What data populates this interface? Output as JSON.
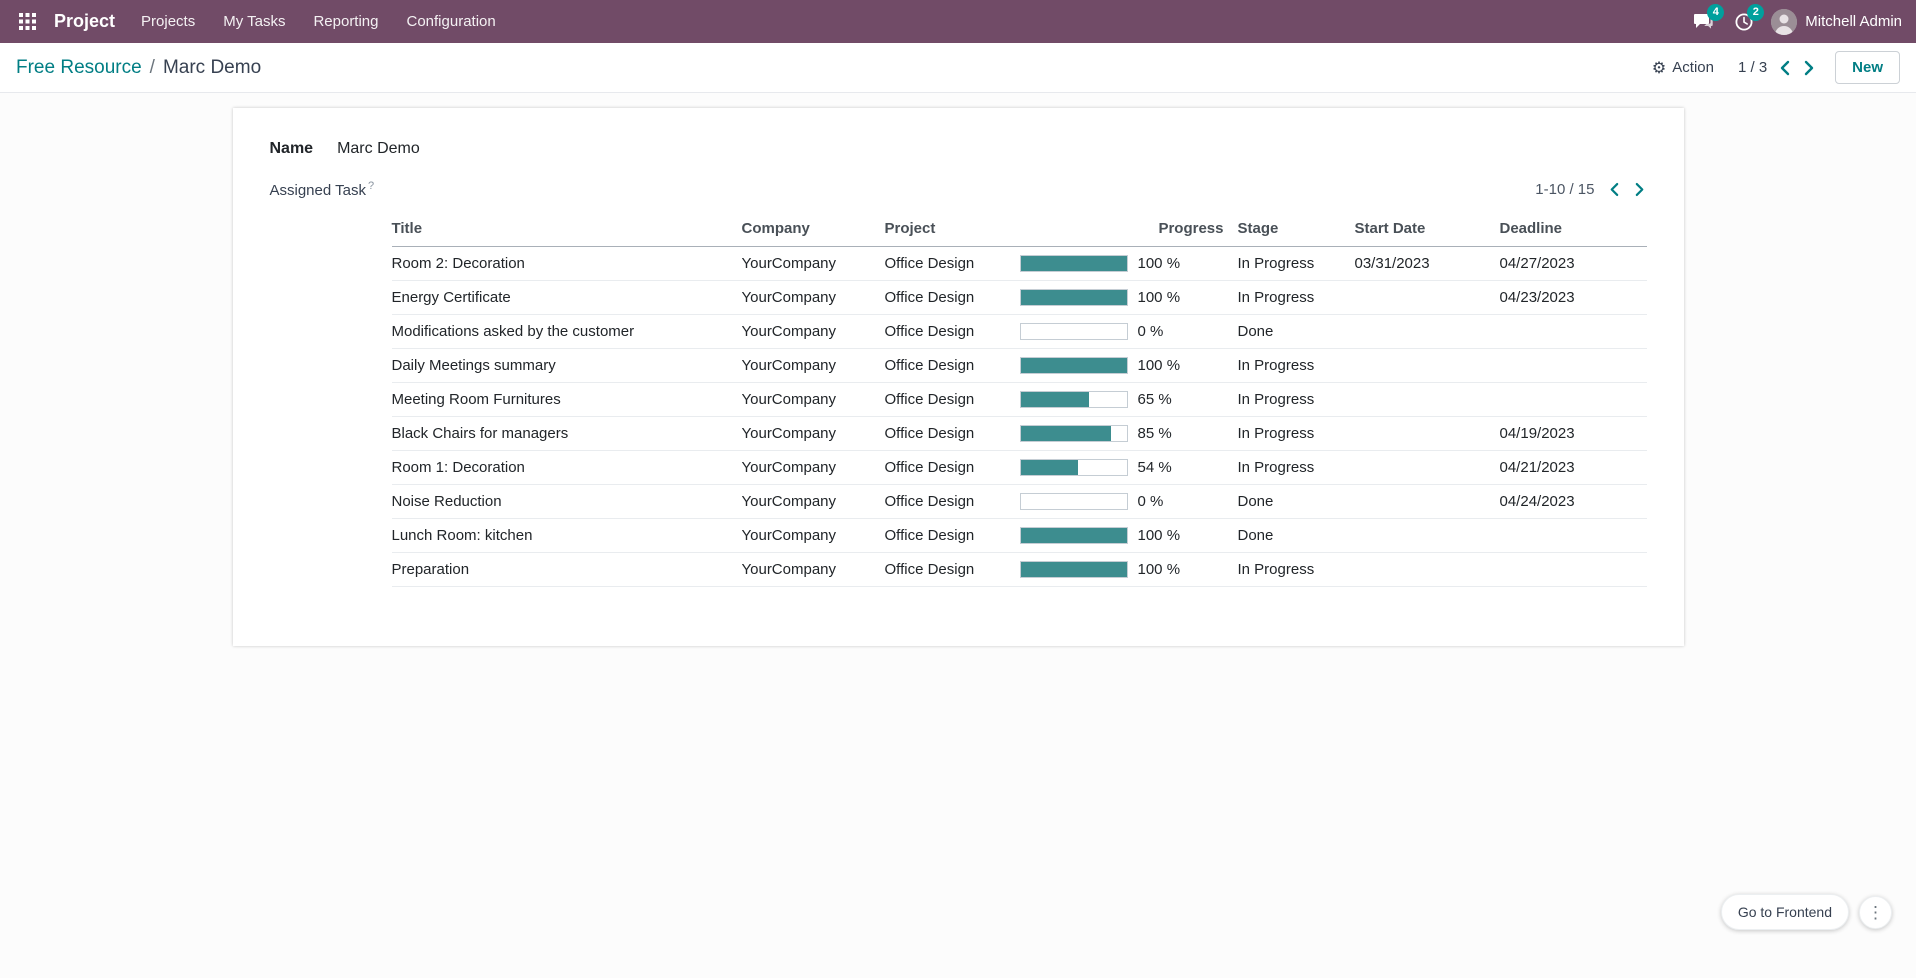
{
  "colors": {
    "navbar_bg": "#714B67",
    "accent_teal": "#017e84",
    "badge_bg": "#00a09d",
    "progress_fill": "#3d8d8f"
  },
  "icons": {
    "gear": "⚙",
    "more_vertical": "⋮"
  },
  "navbar": {
    "app_name": "Project",
    "menu_items": [
      "Projects",
      "My Tasks",
      "Reporting",
      "Configuration"
    ],
    "messages_badge": "4",
    "activities_badge": "2",
    "user_name": "Mitchell Admin"
  },
  "control_panel": {
    "breadcrumb": {
      "parent": "Free Resource",
      "separator": "/",
      "current": "Marc Demo"
    },
    "action_label": "Action",
    "pager_value": "1 / 3",
    "new_button_label": "New"
  },
  "form": {
    "name_label": "Name",
    "name_value": "Marc Demo",
    "tasks_label": "Assigned Task",
    "tasks_help_marker": "?",
    "list_pager": "1-10 / 15",
    "table": {
      "columns": [
        "Title",
        "Company",
        "Project",
        "Progress",
        "Stage",
        "Start Date",
        "Deadline"
      ],
      "rows": [
        {
          "title": "Room 2: Decoration",
          "company": "YourCompany",
          "project": "Office Design",
          "progress": 100,
          "progress_label": "100 %",
          "stage": "In Progress",
          "start_date": "03/31/2023",
          "deadline": "04/27/2023"
        },
        {
          "title": "Energy Certificate",
          "company": "YourCompany",
          "project": "Office Design",
          "progress": 100,
          "progress_label": "100 %",
          "stage": "In Progress",
          "start_date": "",
          "deadline": "04/23/2023"
        },
        {
          "title": "Modifications asked by the customer",
          "company": "YourCompany",
          "project": "Office Design",
          "progress": 0,
          "progress_label": "0 %",
          "stage": "Done",
          "start_date": "",
          "deadline": ""
        },
        {
          "title": "Daily Meetings summary",
          "company": "YourCompany",
          "project": "Office Design",
          "progress": 100,
          "progress_label": "100 %",
          "stage": "In Progress",
          "start_date": "",
          "deadline": ""
        },
        {
          "title": "Meeting Room Furnitures",
          "company": "YourCompany",
          "project": "Office Design",
          "progress": 65,
          "progress_label": "65 %",
          "stage": "In Progress",
          "start_date": "",
          "deadline": ""
        },
        {
          "title": "Black Chairs for managers",
          "company": "YourCompany",
          "project": "Office Design",
          "progress": 85,
          "progress_label": "85 %",
          "stage": "In Progress",
          "start_date": "",
          "deadline": "04/19/2023"
        },
        {
          "title": "Room 1: Decoration",
          "company": "YourCompany",
          "project": "Office Design",
          "progress": 54,
          "progress_label": "54 %",
          "stage": "In Progress",
          "start_date": "",
          "deadline": "04/21/2023"
        },
        {
          "title": "Noise Reduction",
          "company": "YourCompany",
          "project": "Office Design",
          "progress": 0,
          "progress_label": "0 %",
          "stage": "Done",
          "start_date": "",
          "deadline": "04/24/2023"
        },
        {
          "title": "Lunch Room: kitchen",
          "company": "YourCompany",
          "project": "Office Design",
          "progress": 100,
          "progress_label": "100 %",
          "stage": "Done",
          "start_date": "",
          "deadline": ""
        },
        {
          "title": "Preparation",
          "company": "YourCompany",
          "project": "Office Design",
          "progress": 100,
          "progress_label": "100 %",
          "stage": "In Progress",
          "start_date": "",
          "deadline": ""
        }
      ]
    }
  },
  "footer": {
    "frontend_button_label": "Go to Frontend"
  }
}
